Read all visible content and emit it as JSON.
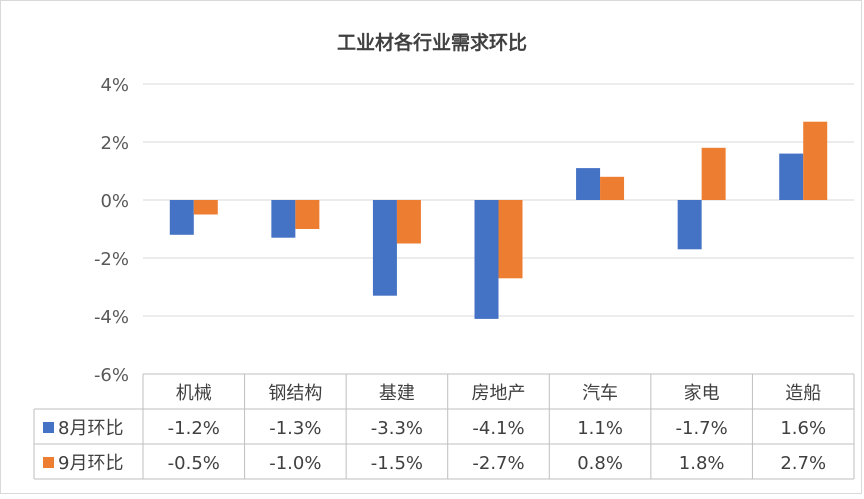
{
  "chart_data": {
    "type": "bar",
    "title": "工业材各行业需求环比",
    "categories": [
      "机械",
      "钢结构",
      "基建",
      "房地产",
      "汽车",
      "家电",
      "造船"
    ],
    "series": [
      {
        "name": "8月环比",
        "color": "#4472c4",
        "values": [
          -1.2,
          -1.3,
          -3.3,
          -4.1,
          1.1,
          -1.7,
          1.6
        ],
        "labels": [
          "-1.2%",
          "-1.3%",
          "-3.3%",
          "-4.1%",
          "1.1%",
          "-1.7%",
          "1.6%"
        ]
      },
      {
        "name": "9月环比",
        "color": "#ed7d31",
        "values": [
          -0.5,
          -1.0,
          -1.5,
          -2.7,
          0.8,
          1.8,
          2.7
        ],
        "labels": [
          "-0.5%",
          "-1.0%",
          "-1.5%",
          "-2.7%",
          "0.8%",
          "1.8%",
          "2.7%"
        ]
      }
    ],
    "ylim": [
      -6,
      4
    ],
    "yticks": [
      4,
      2,
      0,
      -2,
      -4,
      -6
    ],
    "ytick_labels": [
      "4%",
      "2%",
      "0%",
      "-2%",
      "-4%",
      "-6%"
    ],
    "grid": true,
    "legend": "data-table-left"
  }
}
